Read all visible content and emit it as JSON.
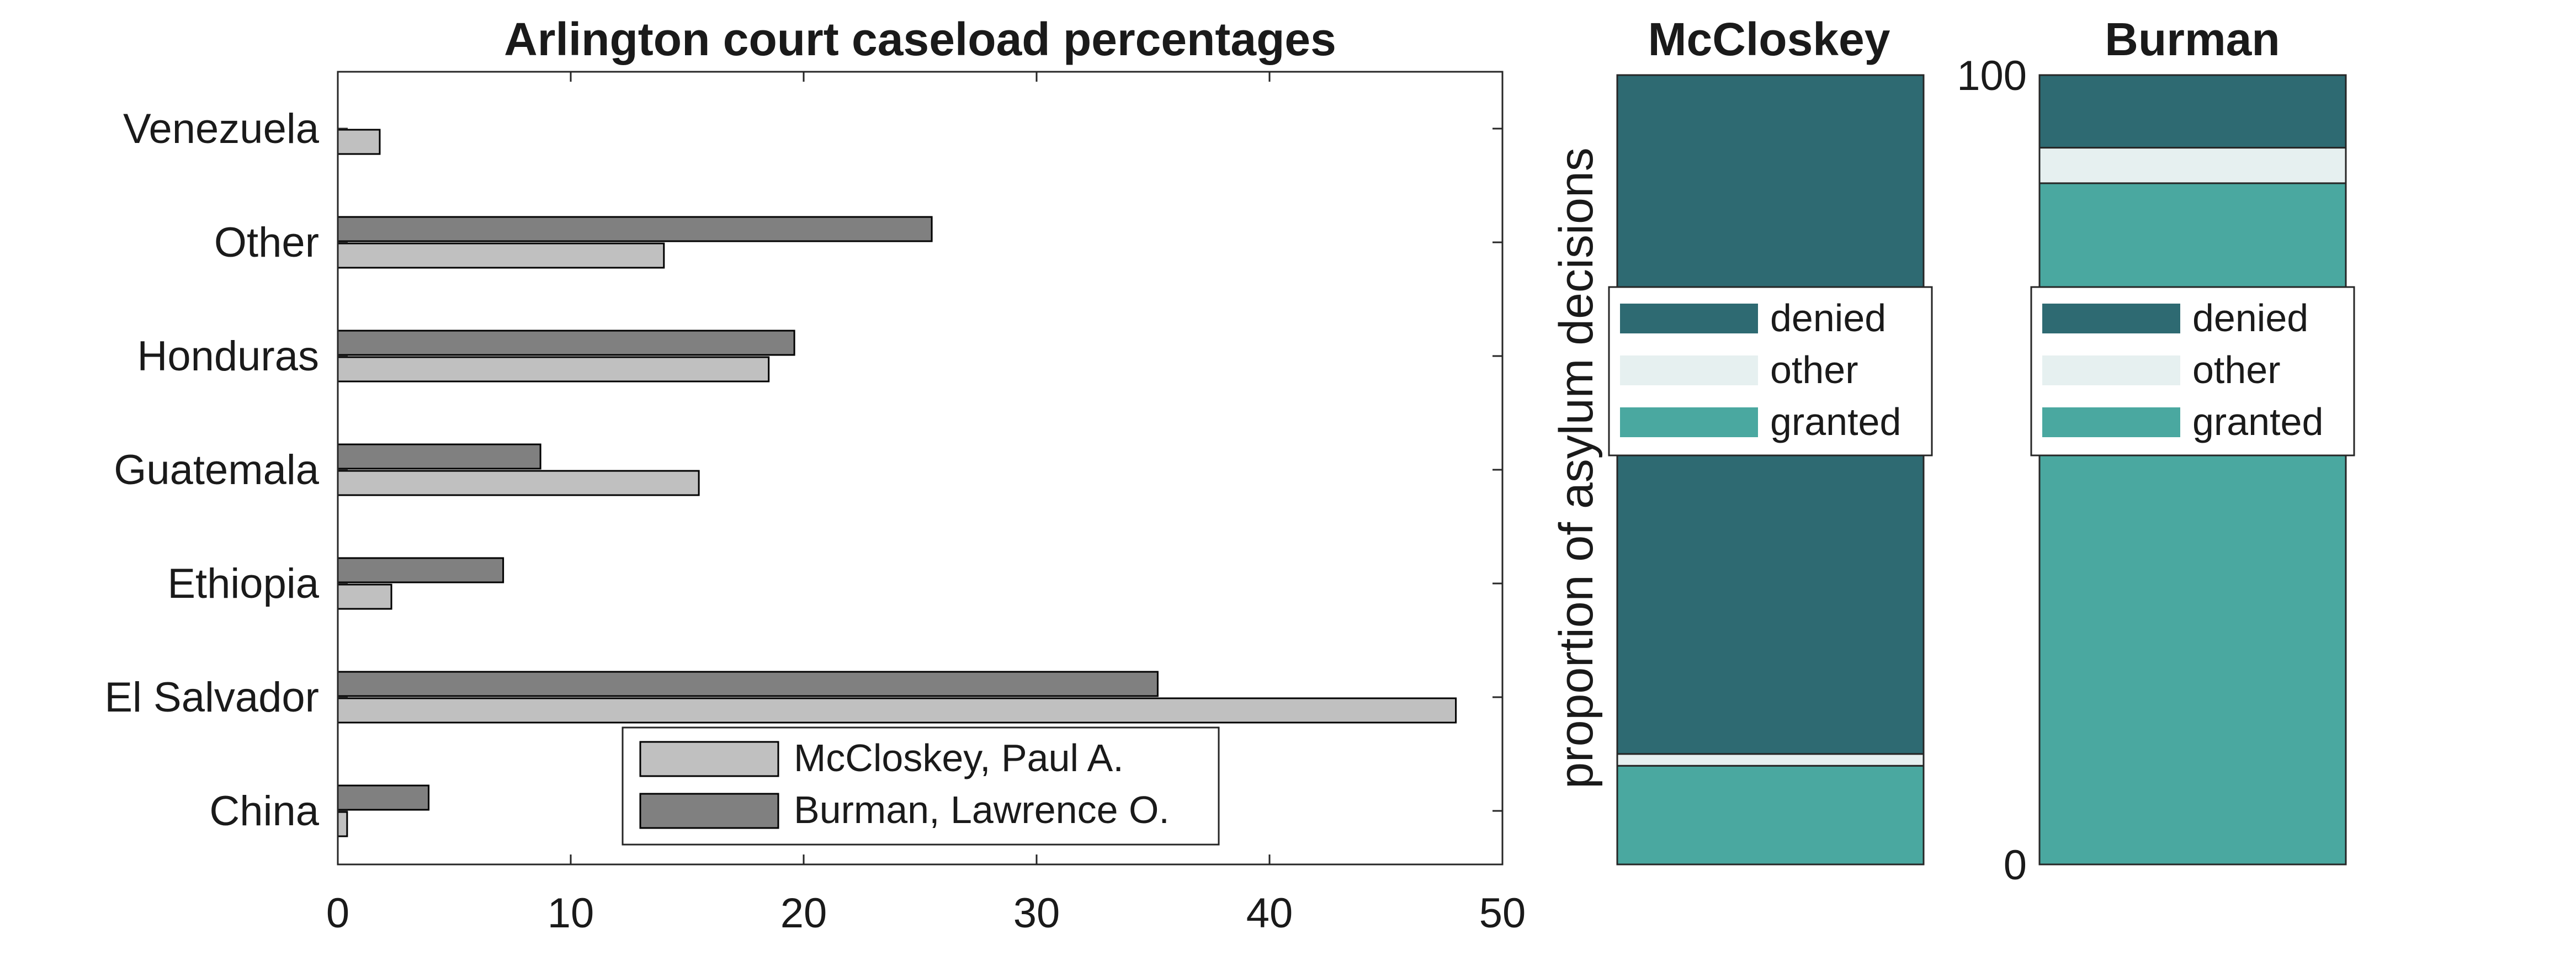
{
  "chart_data": [
    {
      "type": "bar",
      "orientation": "horizontal",
      "title": "Arlington court caseload percentages",
      "xlabel": "",
      "ylabel": "",
      "xlim": [
        0,
        50
      ],
      "x_ticks": [
        "0",
        "10",
        "20",
        "30",
        "40",
        "50"
      ],
      "categories": [
        "Venezuela",
        "Other",
        "Honduras",
        "Guatemala",
        "Ethiopia",
        "El Salvador",
        "China"
      ],
      "series": [
        {
          "name": "McCloskey, Paul A.",
          "color": "#c0c0c0",
          "values": [
            1.8,
            14.0,
            18.5,
            15.5,
            2.3,
            48.0,
            0.4
          ]
        },
        {
          "name": "Burman, Lawrence O.",
          "color": "#808080",
          "values": [
            0.0,
            25.5,
            19.6,
            8.7,
            7.1,
            35.2,
            3.9
          ]
        }
      ],
      "legend_position": "bottom-center",
      "grid": false
    },
    {
      "type": "bar",
      "stacked": true,
      "title": "McCloskey",
      "ylabel": "proportion of asylum decisions",
      "ylim": [
        0,
        100
      ],
      "series": [
        {
          "name": "granted",
          "color": "#4aa8a0",
          "value": 12.5
        },
        {
          "name": "other",
          "color": "#e6f0f0",
          "value": 1.5
        },
        {
          "name": "denied",
          "color": "#2e6a72",
          "value": 86.0
        }
      ],
      "legend_order": [
        "denied",
        "other",
        "granted"
      ],
      "legend_position": "middle"
    },
    {
      "type": "bar",
      "stacked": true,
      "title": "Burman",
      "ylim": [
        0,
        100
      ],
      "y_ticks": [
        "0",
        "100"
      ],
      "series": [
        {
          "name": "granted",
          "color": "#4aa8a0",
          "value": 86.3
        },
        {
          "name": "other",
          "color": "#e6f0f0",
          "value": 4.5
        },
        {
          "name": "denied",
          "color": "#2e6a72",
          "value": 9.2
        }
      ],
      "legend_order": [
        "denied",
        "other",
        "granted"
      ],
      "legend_position": "top-middle"
    }
  ]
}
